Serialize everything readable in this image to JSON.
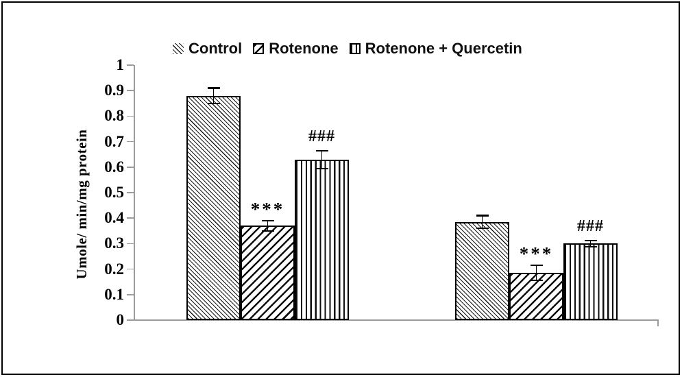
{
  "figure": {
    "background": "#ffffff",
    "border_color": "#000000"
  },
  "colors": {
    "bar_fill": "#ffffff",
    "bar_border": "#000000",
    "axis_line": "#9b9b9b",
    "text": "#000000"
  },
  "legend": {
    "position": "top-center",
    "items": [
      {
        "label": "Control",
        "marker": "hatch-thin-backslash",
        "bordered": false
      },
      {
        "label": "Rotenone",
        "marker": "hatch-thick-slash",
        "bordered": true
      },
      {
        "label": "Rotenone + Quercetin",
        "marker": "hatch-vertical",
        "bordered": true
      }
    ]
  },
  "chart_data": {
    "type": "bar",
    "title": "",
    "xlabel": "",
    "ylabel": "Umole/ min/mg protein",
    "ylim": [
      0,
      1
    ],
    "ytick_step": 0.1,
    "ytick_labels": [
      "0",
      "0.1",
      "0.2",
      "0.3",
      "0.4",
      "0.5",
      "0.6",
      "0.7",
      "0.8",
      "0.9",
      "1"
    ],
    "categories": [
      "group 1",
      "group 2"
    ],
    "x_tick_labels_visible": false,
    "grid": false,
    "error_bars": true,
    "series": [
      {
        "name": "Control",
        "hatch": "thin-backslash",
        "values": [
          0.88,
          0.385
        ],
        "errors": [
          0.03,
          0.025
        ],
        "annotations": [
          "",
          ""
        ]
      },
      {
        "name": "Rotenone",
        "hatch": "thick-slash",
        "values": [
          0.37,
          0.185
        ],
        "errors": [
          0.02,
          0.03
        ],
        "annotations": [
          "***",
          "***"
        ]
      },
      {
        "name": "Rotenone + Quercetin",
        "hatch": "vertical-lines",
        "values": [
          0.63,
          0.3
        ],
        "errors": [
          0.035,
          0.012
        ],
        "annotations": [
          "###",
          "###"
        ]
      }
    ]
  }
}
